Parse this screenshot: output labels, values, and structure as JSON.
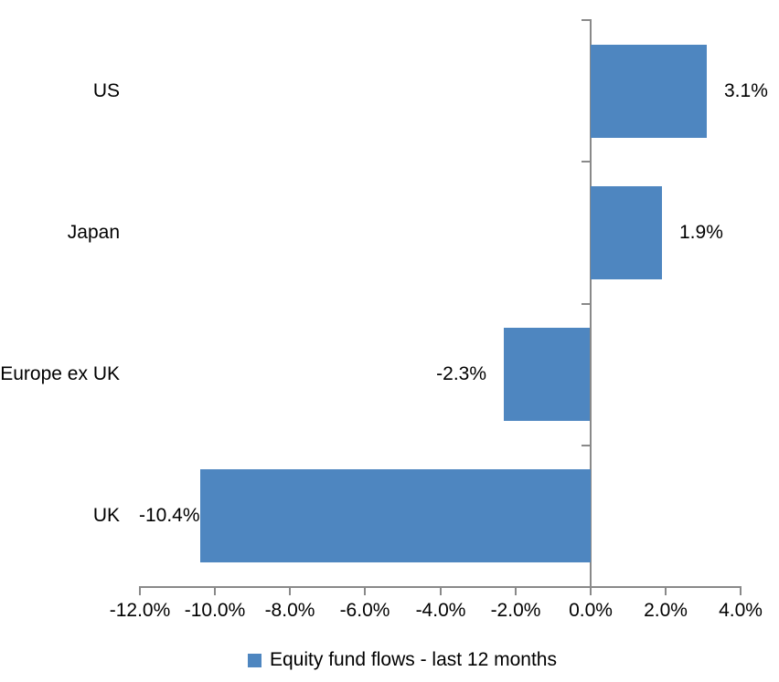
{
  "chart_data": {
    "type": "bar",
    "orientation": "horizontal",
    "title": "",
    "xlabel": "",
    "ylabel": "",
    "categories": [
      "US",
      "Japan",
      "Europe ex UK",
      "UK"
    ],
    "series": [
      {
        "name": "Equity fund flows - last 12 months",
        "values": [
          3.1,
          1.9,
          -2.3,
          -10.4
        ],
        "data_labels": [
          "3.1%",
          "1.9%",
          "-2.3%",
          "-10.4%"
        ]
      }
    ],
    "xlim": [
      -12.0,
      4.0
    ],
    "x_tick_step": 2.0,
    "x_tick_labels": [
      "-12.0%",
      "-10.0%",
      "-8.0%",
      "-6.0%",
      "-4.0%",
      "-2.0%",
      "0.0%",
      "2.0%",
      "4.0%"
    ],
    "grid": false,
    "legend_position": "bottom",
    "colors": {
      "bar_fill": "#4E86C0",
      "axis_line": "#898989",
      "text": "#000000",
      "background": "#ffffff"
    }
  }
}
